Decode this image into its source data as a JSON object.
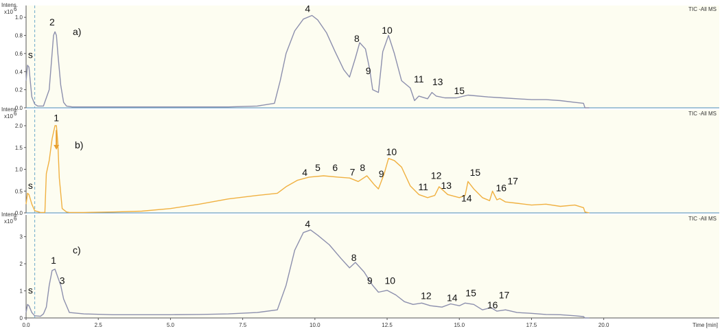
{
  "chart_data": [
    {
      "type": "line",
      "panel_label": "a)",
      "trace_label": "TIC -All MS",
      "y_title": "Intens.",
      "y_exponent": "x10",
      "y_exponent_power": "6",
      "xlabel": "Time [min]",
      "xlim": [
        0,
        24.0
      ],
      "ylim": [
        0,
        1.1
      ],
      "y_ticks": [
        "0.0",
        "0.2",
        "0.4",
        "0.6",
        "0.8",
        "1.0"
      ],
      "y_tick_values": [
        0,
        0.2,
        0.4,
        0.6,
        0.8,
        1.0
      ],
      "line_color": "#8c8fad",
      "marker_line_x": 0.3,
      "x": [
        0,
        0.05,
        0.1,
        0.15,
        0.2,
        0.3,
        0.4,
        0.6,
        0.8,
        0.9,
        0.95,
        1.0,
        1.05,
        1.1,
        1.2,
        1.3,
        1.4,
        1.6,
        2.5,
        4,
        6,
        7,
        8,
        8.6,
        8.8,
        9.0,
        9.3,
        9.6,
        9.9,
        10.1,
        10.4,
        10.7,
        11.0,
        11.2,
        11.4,
        11.55,
        11.75,
        11.9,
        12.0,
        12.2,
        12.35,
        12.55,
        12.75,
        13.0,
        13.3,
        13.45,
        13.6,
        13.9,
        14.05,
        14.2,
        14.5,
        14.9,
        15.3,
        16.0,
        16.5,
        17.0,
        17.5,
        18.0,
        18.5,
        19.0,
        19.3,
        19.35,
        19.5
      ],
      "values": [
        0.3,
        0.47,
        0.45,
        0.28,
        0.12,
        0.04,
        0.02,
        0.02,
        0.2,
        0.6,
        0.8,
        0.84,
        0.8,
        0.6,
        0.25,
        0.06,
        0.02,
        0.01,
        0.01,
        0.01,
        0.01,
        0.01,
        0.02,
        0.05,
        0.3,
        0.6,
        0.85,
        0.98,
        1.02,
        0.97,
        0.83,
        0.62,
        0.42,
        0.34,
        0.55,
        0.72,
        0.65,
        0.42,
        0.2,
        0.17,
        0.62,
        0.8,
        0.6,
        0.3,
        0.22,
        0.08,
        0.13,
        0.1,
        0.17,
        0.13,
        0.11,
        0.11,
        0.14,
        0.12,
        0.11,
        0.1,
        0.09,
        0.09,
        0.08,
        0.06,
        0.05,
        0.0,
        0.0
      ],
      "peak_labels": [
        {
          "text": "s",
          "x": 0.15,
          "y": 0.55
        },
        {
          "text": "2",
          "x": 0.9,
          "y": 0.91
        },
        {
          "text": "4",
          "x": 9.75,
          "y": 1.06
        },
        {
          "text": "8",
          "x": 11.45,
          "y": 0.73
        },
        {
          "text": "9",
          "x": 11.85,
          "y": 0.37
        },
        {
          "text": "10",
          "x": 12.5,
          "y": 0.82
        },
        {
          "text": "11",
          "x": 13.6,
          "y": 0.28
        },
        {
          "text": "13",
          "x": 14.25,
          "y": 0.25
        },
        {
          "text": "15",
          "x": 15.0,
          "y": 0.15
        }
      ]
    },
    {
      "type": "line",
      "panel_label": "b)",
      "trace_label": "TIC -All MS",
      "y_title": "Intens.",
      "y_exponent": "x10",
      "y_exponent_power": "6",
      "xlabel": "Time [min]",
      "xlim": [
        0,
        24.0
      ],
      "ylim": [
        0,
        2.3
      ],
      "y_ticks": [
        "0.0",
        "0.5",
        "1.0",
        "1.5",
        "2.0"
      ],
      "y_tick_values": [
        0,
        0.5,
        1.0,
        1.5,
        2.0
      ],
      "line_color": "#f0b040",
      "marker_line_x": 0.3,
      "x": [
        0,
        0.05,
        0.1,
        0.2,
        0.3,
        0.5,
        0.65,
        0.7,
        0.8,
        0.9,
        1.0,
        1.05,
        1.1,
        1.15,
        1.25,
        1.4,
        1.5,
        2.0,
        3.0,
        4.0,
        5.0,
        6.0,
        7.0,
        8.0,
        8.7,
        9.0,
        9.4,
        9.8,
        10.3,
        10.8,
        11.2,
        11.5,
        11.8,
        12.05,
        12.2,
        12.4,
        12.55,
        12.75,
        13.0,
        13.3,
        13.6,
        13.9,
        14.15,
        14.3,
        14.6,
        15.0,
        15.2,
        15.3,
        15.5,
        15.8,
        16.05,
        16.15,
        16.3,
        16.4,
        16.6,
        17.0,
        17.5,
        18.0,
        18.5,
        19.0,
        19.3,
        19.35,
        19.5
      ],
      "values": [
        0.2,
        0.45,
        0.42,
        0.2,
        0.05,
        0.01,
        0.01,
        0.9,
        1.2,
        1.7,
        2.0,
        2.0,
        1.6,
        0.8,
        0.1,
        0.02,
        0.01,
        0.01,
        0.02,
        0.04,
        0.1,
        0.2,
        0.32,
        0.4,
        0.45,
        0.6,
        0.75,
        0.82,
        0.85,
        0.82,
        0.8,
        0.72,
        0.85,
        0.65,
        0.55,
        0.9,
        1.25,
        1.2,
        1.05,
        0.62,
        0.42,
        0.35,
        0.4,
        0.6,
        0.42,
        0.35,
        0.4,
        0.72,
        0.55,
        0.35,
        0.28,
        0.5,
        0.3,
        0.33,
        0.25,
        0.22,
        0.18,
        0.2,
        0.15,
        0.18,
        0.12,
        0.02,
        0.0
      ],
      "peak_labels": [
        {
          "text": "s",
          "x": 0.15,
          "y": 0.55
        },
        {
          "text": "1",
          "x": 1.05,
          "y": 2.1
        },
        {
          "text": "4",
          "x": 9.65,
          "y": 0.85
        },
        {
          "text": "5",
          "x": 10.1,
          "y": 0.96
        },
        {
          "text": "6",
          "x": 10.7,
          "y": 0.96
        },
        {
          "text": "7",
          "x": 11.3,
          "y": 0.86
        },
        {
          "text": "8",
          "x": 11.65,
          "y": 0.96
        },
        {
          "text": "9",
          "x": 12.3,
          "y": 0.82
        },
        {
          "text": "10",
          "x": 12.65,
          "y": 1.32
        },
        {
          "text": "11",
          "x": 13.75,
          "y": 0.52
        },
        {
          "text": "12",
          "x": 14.2,
          "y": 0.78
        },
        {
          "text": "13",
          "x": 14.55,
          "y": 0.55
        },
        {
          "text": "14",
          "x": 15.25,
          "y": 0.26
        },
        {
          "text": "15",
          "x": 15.55,
          "y": 0.85
        },
        {
          "text": "16",
          "x": 16.45,
          "y": 0.5
        },
        {
          "text": "17",
          "x": 16.85,
          "y": 0.65
        }
      ],
      "arrow": {
        "x": 1.05,
        "y_from": 1.9,
        "y_to": 1.45,
        "color": "#e8a030"
      }
    },
    {
      "type": "line",
      "panel_label": "c)",
      "trace_label": "TIC -All MS",
      "y_title": "Intens.",
      "y_exponent": "x10",
      "y_exponent_power": "6",
      "xlabel": "Time [min]",
      "xlim": [
        0,
        24.0
      ],
      "ylim": [
        0,
        3.7
      ],
      "y_ticks": [
        "0",
        "1",
        "2",
        "3"
      ],
      "y_tick_values": [
        0,
        1,
        2,
        3
      ],
      "x_ticks": [
        "0.0",
        "2.5",
        "5.0",
        "7.5",
        "10.0",
        "12.5",
        "15.0",
        "17.5",
        "20.0"
      ],
      "x_tick_values": [
        0,
        2.5,
        5.0,
        7.5,
        10.0,
        12.5,
        15.0,
        17.5,
        20.0
      ],
      "line_color": "#8c8fad",
      "marker_line_x": 0.3,
      "x": [
        0,
        0.05,
        0.1,
        0.2,
        0.3,
        0.5,
        0.6,
        0.7,
        0.8,
        0.9,
        1.0,
        1.1,
        1.2,
        1.3,
        1.5,
        2.0,
        3.0,
        4.0,
        5.0,
        6.0,
        7.0,
        8.0,
        8.7,
        9.0,
        9.3,
        9.6,
        9.85,
        10.1,
        10.5,
        10.9,
        11.2,
        11.4,
        11.7,
        12.0,
        12.2,
        12.5,
        12.8,
        13.1,
        13.4,
        13.7,
        14.0,
        14.4,
        14.7,
        15.0,
        15.2,
        15.5,
        15.8,
        16.1,
        16.3,
        16.6,
        17.0,
        17.5,
        18.0,
        18.5,
        19.0,
        19.3,
        19.35,
        19.5
      ],
      "values": [
        0.2,
        0.5,
        0.45,
        0.2,
        0.08,
        0.06,
        0.15,
        0.4,
        1.2,
        1.75,
        1.8,
        1.5,
        1.2,
        0.7,
        0.2,
        0.15,
        0.12,
        0.12,
        0.12,
        0.13,
        0.15,
        0.2,
        0.3,
        1.2,
        2.5,
        3.15,
        3.25,
        3.05,
        2.7,
        2.2,
        1.85,
        2.05,
        1.7,
        1.2,
        0.95,
        1.02,
        0.85,
        0.6,
        0.5,
        0.55,
        0.45,
        0.4,
        0.52,
        0.45,
        0.55,
        0.5,
        0.3,
        0.38,
        0.25,
        0.3,
        0.2,
        0.17,
        0.13,
        0.12,
        0.08,
        0.05,
        0.0,
        0.0
      ],
      "peak_labels": [
        {
          "text": "s",
          "x": 0.15,
          "y": 0.9
        },
        {
          "text": "1",
          "x": 0.95,
          "y": 2.0
        },
        {
          "text": "3",
          "x": 1.25,
          "y": 1.25
        },
        {
          "text": "4",
          "x": 9.75,
          "y": 3.35
        },
        {
          "text": "8",
          "x": 11.35,
          "y": 2.1
        },
        {
          "text": "9",
          "x": 11.9,
          "y": 1.25
        },
        {
          "text": "10",
          "x": 12.6,
          "y": 1.25
        },
        {
          "text": "12",
          "x": 13.85,
          "y": 0.7
        },
        {
          "text": "14",
          "x": 14.75,
          "y": 0.62
        },
        {
          "text": "15",
          "x": 15.4,
          "y": 0.8
        },
        {
          "text": "16",
          "x": 16.15,
          "y": 0.35
        },
        {
          "text": "17",
          "x": 16.55,
          "y": 0.72
        }
      ]
    }
  ]
}
